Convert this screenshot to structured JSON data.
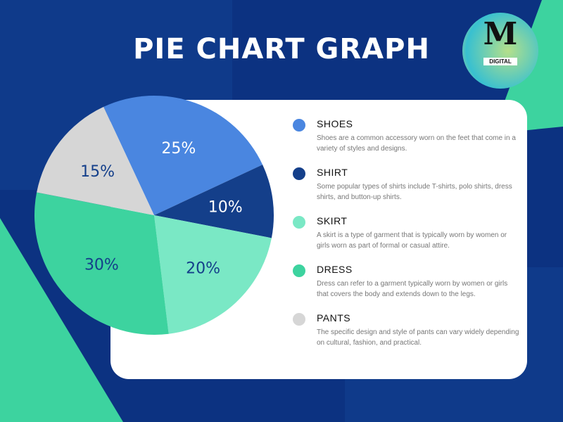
{
  "title": "PIE CHART GRAPH",
  "logo": {
    "text": "DIGITAL",
    "letter": "M"
  },
  "colors": {
    "background": "#0c3281",
    "accent_green": "#3dd39f",
    "card": "#ffffff"
  },
  "chart_data": {
    "type": "pie",
    "title": "PIE CHART GRAPH",
    "start_angle_deg": -25,
    "slices": [
      {
        "label": "SHOES",
        "value": 25,
        "display": "25%",
        "color": "#4a86e0",
        "label_color": "#ffffff"
      },
      {
        "label": "SHIRT",
        "value": 10,
        "display": "10%",
        "color": "#143f8a",
        "label_color": "#ffffff"
      },
      {
        "label": "SKIRT",
        "value": 20,
        "display": "20%",
        "color": "#7ae8c5",
        "label_color": "#143f8a"
      },
      {
        "label": "DRESS",
        "value": 30,
        "display": "30%",
        "color": "#3dd39f",
        "label_color": "#143f8a"
      },
      {
        "label": "PANTS",
        "value": 15,
        "display": "15%",
        "color": "#d6d6d6",
        "label_color": "#143f8a"
      }
    ],
    "legend_placement": "right"
  },
  "legend": [
    {
      "name": "SHOES",
      "desc": "Shoes are a common accessory worn on the feet that come in a variety of styles and designs."
    },
    {
      "name": "SHIRT",
      "desc": "Some popular types of shirts include T-shirts, polo shirts, dress shirts, and button-up shirts."
    },
    {
      "name": "SKIRT",
      "desc": "A skirt is a type of garment that is typically worn by women or girls worn as part of formal or casual attire."
    },
    {
      "name": "DRESS",
      "desc": "Dress can refer to a garment typically worn by women or girls that covers the body and extends down to the legs."
    },
    {
      "name": "PANTS",
      "desc": "The specific design and style of pants can vary widely depending on cultural, fashion, and practical."
    }
  ]
}
